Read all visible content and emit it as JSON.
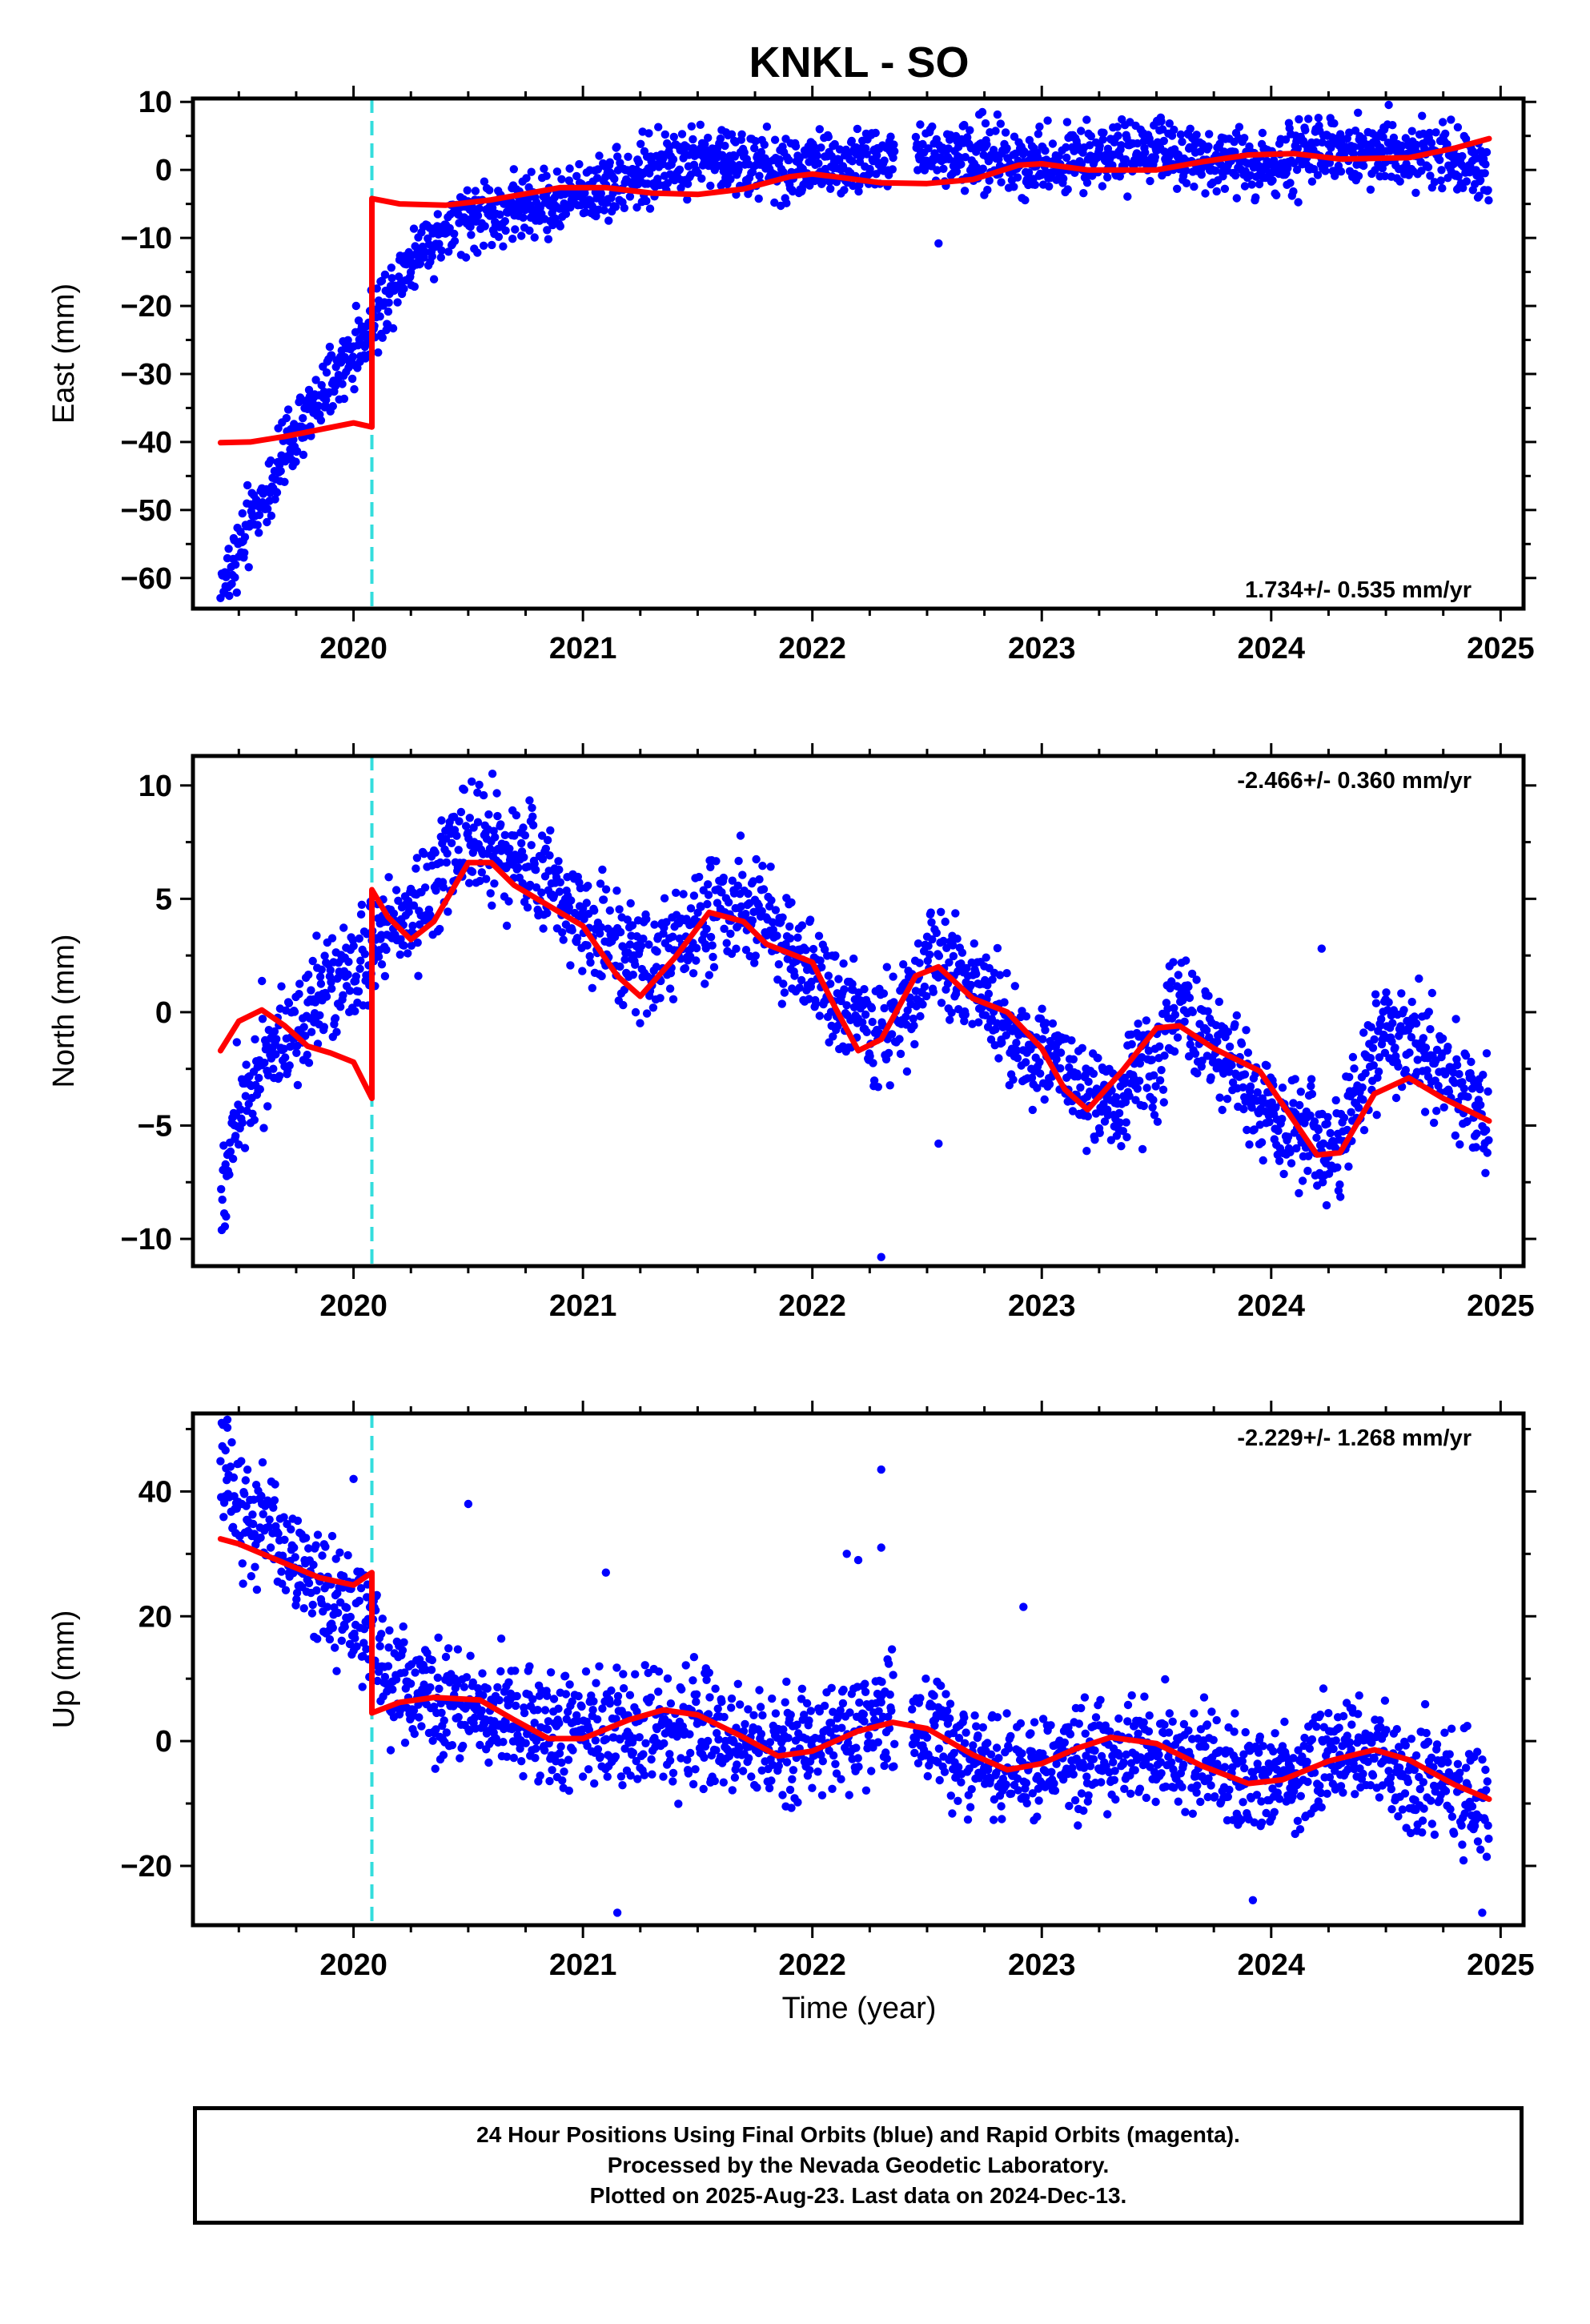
{
  "title": "KNKL - SO",
  "colors": {
    "data": "#0000ff",
    "model": "#ff0000",
    "event_line": "#33dddd",
    "frame": "#000000"
  },
  "xaxis": {
    "label": "Time (year)",
    "ticks": [
      2020,
      2021,
      2022,
      2023,
      2024,
      2025
    ],
    "xlim": [
      2019.3,
      2025.1
    ]
  },
  "footer": {
    "line1": "24 Hour Positions Using Final Orbits (blue) and Rapid Orbits (magenta).",
    "line2": "Processed by the Nevada Geodetic Laboratory.",
    "line3": "Plotted on 2025-Aug-23. Last data on 2024-Dec-13."
  },
  "chart_data": [
    {
      "type": "scatter",
      "name": "east",
      "ylabel": "East (mm)",
      "ylim": [
        -64.5,
        10.5
      ],
      "yticks": [
        10,
        0,
        -10,
        -20,
        -30,
        -40,
        -50,
        -60
      ],
      "rate": "1.734+/- 0.535 mm/yr",
      "event_line_x": 2020.08,
      "trend_anchors": [
        [
          2019.42,
          -62
        ],
        [
          2019.55,
          -52
        ],
        [
          2019.7,
          -42
        ],
        [
          2019.85,
          -34
        ],
        [
          2020.0,
          -27
        ],
        [
          2020.1,
          -22
        ],
        [
          2020.2,
          -15
        ],
        [
          2020.35,
          -10
        ],
        [
          2020.5,
          -7
        ],
        [
          2020.7,
          -5.5
        ],
        [
          2020.9,
          -5
        ],
        [
          2021.1,
          -2
        ],
        [
          2021.3,
          0
        ],
        [
          2021.5,
          2
        ],
        [
          2021.7,
          1
        ],
        [
          2021.9,
          0
        ],
        [
          2022.1,
          1
        ],
        [
          2022.3,
          2
        ],
        [
          2022.4,
          3
        ],
        [
          2022.6,
          2
        ],
        [
          2022.8,
          2
        ],
        [
          2023.0,
          1
        ],
        [
          2023.3,
          2.5
        ],
        [
          2023.6,
          2.5
        ],
        [
          2023.9,
          1.5
        ],
        [
          2024.0,
          0.5
        ],
        [
          2024.3,
          3
        ],
        [
          2024.6,
          3
        ],
        [
          2024.95,
          0
        ]
      ],
      "noise": 2.4,
      "gaps": [
        [
          2022.36,
          2022.45
        ]
      ],
      "outliers": [
        [
          2022.55,
          -10.8
        ]
      ],
      "model": [
        [
          2019.42,
          -40.1
        ],
        [
          2019.55,
          -40
        ],
        [
          2019.7,
          -39.2
        ],
        [
          2019.85,
          -38.2
        ],
        [
          2020.0,
          -37.2
        ],
        [
          2020.08,
          -37.8
        ],
        [
          2020.0801,
          -4.2
        ],
        [
          2020.2,
          -5
        ],
        [
          2020.4,
          -5.2
        ],
        [
          2020.6,
          -4.4
        ],
        [
          2020.9,
          -2.6
        ],
        [
          2021.1,
          -2.6
        ],
        [
          2021.3,
          -3.4
        ],
        [
          2021.5,
          -3.6
        ],
        [
          2021.7,
          -2.8
        ],
        [
          2021.9,
          -1.0
        ],
        [
          2022.0,
          -0.6
        ],
        [
          2022.1,
          -1.0
        ],
        [
          2022.3,
          -1.9
        ],
        [
          2022.5,
          -2.0
        ],
        [
          2022.7,
          -1.4
        ],
        [
          2022.9,
          0.7
        ],
        [
          2023.0,
          0.9
        ],
        [
          2023.2,
          0.0
        ],
        [
          2023.5,
          0.0
        ],
        [
          2023.7,
          1.2
        ],
        [
          2023.9,
          2.2
        ],
        [
          2024.1,
          2.4
        ],
        [
          2024.3,
          1.6
        ],
        [
          2024.6,
          1.8
        ],
        [
          2024.8,
          3.2
        ],
        [
          2024.95,
          4.6
        ]
      ]
    },
    {
      "type": "scatter",
      "name": "north",
      "ylabel": "North (mm)",
      "ylim": [
        -11.2,
        11.3
      ],
      "yticks": [
        10,
        5,
        0,
        -5,
        -10
      ],
      "rate": "-2.466+/- 0.360 mm/yr",
      "event_line_x": 2020.08,
      "trend_anchors": [
        [
          2019.42,
          -8
        ],
        [
          2019.5,
          -4
        ],
        [
          2019.6,
          -2
        ],
        [
          2019.8,
          0
        ],
        [
          2020.0,
          1.5
        ],
        [
          2020.1,
          3
        ],
        [
          2020.3,
          5
        ],
        [
          2020.5,
          8
        ],
        [
          2020.7,
          7
        ],
        [
          2020.9,
          5.5
        ],
        [
          2021.1,
          3
        ],
        [
          2021.3,
          2
        ],
        [
          2021.5,
          4
        ],
        [
          2021.7,
          5
        ],
        [
          2021.9,
          3
        ],
        [
          2022.1,
          0.5
        ],
        [
          2022.3,
          -1
        ],
        [
          2022.4,
          -0.5
        ],
        [
          2022.5,
          2.5
        ],
        [
          2022.7,
          1
        ],
        [
          2022.9,
          -1
        ],
        [
          2023.1,
          -3
        ],
        [
          2023.3,
          -4
        ],
        [
          2023.5,
          -2
        ],
        [
          2023.6,
          0.5
        ],
        [
          2023.8,
          -2
        ],
        [
          2024.0,
          -4.5
        ],
        [
          2024.2,
          -6
        ],
        [
          2024.3,
          -5.5
        ],
        [
          2024.5,
          -0.5
        ],
        [
          2024.7,
          -2
        ],
        [
          2024.95,
          -4.6
        ]
      ],
      "noise": 1.2,
      "gaps": [],
      "outliers": [
        [
          2022.3,
          -10.8
        ],
        [
          2024.22,
          2.8
        ],
        [
          2022.55,
          -5.8
        ]
      ],
      "model": [
        [
          2019.42,
          -1.7
        ],
        [
          2019.5,
          -0.4
        ],
        [
          2019.6,
          0.1
        ],
        [
          2019.7,
          -0.6
        ],
        [
          2019.8,
          -1.5
        ],
        [
          2019.9,
          -1.8
        ],
        [
          2020.0,
          -2.2
        ],
        [
          2020.08,
          -3.8
        ],
        [
          2020.0801,
          5.4
        ],
        [
          2020.15,
          4.2
        ],
        [
          2020.25,
          3.2
        ],
        [
          2020.35,
          4.0
        ],
        [
          2020.5,
          6.6
        ],
        [
          2020.6,
          6.6
        ],
        [
          2020.7,
          5.6
        ],
        [
          2020.8,
          5.0
        ],
        [
          2021.0,
          3.8
        ],
        [
          2021.15,
          1.6
        ],
        [
          2021.25,
          0.7
        ],
        [
          2021.4,
          2.4
        ],
        [
          2021.55,
          4.4
        ],
        [
          2021.7,
          4.0
        ],
        [
          2021.8,
          3.0
        ],
        [
          2022.0,
          2.2
        ],
        [
          2022.1,
          0.2
        ],
        [
          2022.2,
          -1.7
        ],
        [
          2022.3,
          -1.2
        ],
        [
          2022.45,
          1.6
        ],
        [
          2022.55,
          2.0
        ],
        [
          2022.7,
          0.6
        ],
        [
          2022.85,
          0.0
        ],
        [
          2023.0,
          -1.6
        ],
        [
          2023.1,
          -3.4
        ],
        [
          2023.2,
          -4.3
        ],
        [
          2023.35,
          -2.6
        ],
        [
          2023.5,
          -0.7
        ],
        [
          2023.6,
          -0.6
        ],
        [
          2023.75,
          -1.6
        ],
        [
          2023.95,
          -2.6
        ],
        [
          2024.1,
          -4.8
        ],
        [
          2024.2,
          -6.3
        ],
        [
          2024.3,
          -6.2
        ],
        [
          2024.45,
          -3.6
        ],
        [
          2024.6,
          -2.9
        ],
        [
          2024.75,
          -3.8
        ],
        [
          2024.95,
          -4.8
        ]
      ]
    },
    {
      "type": "scatter",
      "name": "up",
      "ylabel": "Up (mm)",
      "ylim": [
        -29.5,
        52.5
      ],
      "yticks": [
        40,
        20,
        0,
        -20
      ],
      "rate": "-2.229+/- 1.268 mm/yr",
      "event_line_x": 2020.08,
      "trend_anchors": [
        [
          2019.42,
          42
        ],
        [
          2019.6,
          34
        ],
        [
          2019.8,
          27
        ],
        [
          2020.0,
          20
        ],
        [
          2020.08,
          17
        ],
        [
          2020.15,
          10
        ],
        [
          2020.3,
          7
        ],
        [
          2020.6,
          5
        ],
        [
          2020.9,
          1
        ],
        [
          2021.2,
          2
        ],
        [
          2021.5,
          2
        ],
        [
          2021.8,
          -1
        ],
        [
          2022.0,
          0
        ],
        [
          2022.3,
          3
        ],
        [
          2022.5,
          2
        ],
        [
          2022.7,
          -3
        ],
        [
          2022.9,
          -4
        ],
        [
          2023.2,
          -2
        ],
        [
          2023.5,
          -2
        ],
        [
          2023.8,
          -5
        ],
        [
          2024.0,
          -6
        ],
        [
          2024.3,
          -2
        ],
        [
          2024.5,
          -3
        ],
        [
          2024.95,
          -9
        ]
      ],
      "noise": 4.5,
      "gaps": [
        [
          2022.36,
          2022.43
        ]
      ],
      "outliers": [
        [
          2019.45,
          51.5
        ],
        [
          2020.0,
          42
        ],
        [
          2020.5,
          38
        ],
        [
          2022.3,
          43.5
        ],
        [
          2022.15,
          30
        ],
        [
          2022.2,
          29
        ],
        [
          2022.3,
          31
        ],
        [
          2021.15,
          -27.5
        ],
        [
          2023.92,
          -25.5
        ],
        [
          2024.92,
          -27.5
        ],
        [
          2022.92,
          21.5
        ],
        [
          2021.1,
          27
        ]
      ],
      "model": [
        [
          2019.42,
          32.4
        ],
        [
          2019.5,
          31.6
        ],
        [
          2019.7,
          28.5
        ],
        [
          2019.85,
          26.2
        ],
        [
          2020.0,
          25.0
        ],
        [
          2020.08,
          27.0
        ],
        [
          2020.0801,
          4.5
        ],
        [
          2020.2,
          6.2
        ],
        [
          2020.35,
          7.0
        ],
        [
          2020.55,
          6.6
        ],
        [
          2020.7,
          3.4
        ],
        [
          2020.85,
          0.4
        ],
        [
          2021.0,
          0.4
        ],
        [
          2021.2,
          3.4
        ],
        [
          2021.35,
          5.0
        ],
        [
          2021.5,
          4.2
        ],
        [
          2021.7,
          0.6
        ],
        [
          2021.85,
          -2.4
        ],
        [
          2022.0,
          -1.6
        ],
        [
          2022.2,
          1.6
        ],
        [
          2022.35,
          3.0
        ],
        [
          2022.5,
          2.0
        ],
        [
          2022.7,
          -2.2
        ],
        [
          2022.85,
          -4.6
        ],
        [
          2023.0,
          -3.6
        ],
        [
          2023.15,
          -1.2
        ],
        [
          2023.3,
          0.6
        ],
        [
          2023.5,
          -0.4
        ],
        [
          2023.7,
          -4.0
        ],
        [
          2023.9,
          -6.8
        ],
        [
          2024.05,
          -6.2
        ],
        [
          2024.25,
          -3.2
        ],
        [
          2024.45,
          -1.4
        ],
        [
          2024.6,
          -3.0
        ],
        [
          2024.8,
          -7.0
        ],
        [
          2024.95,
          -9.3
        ]
      ]
    }
  ]
}
